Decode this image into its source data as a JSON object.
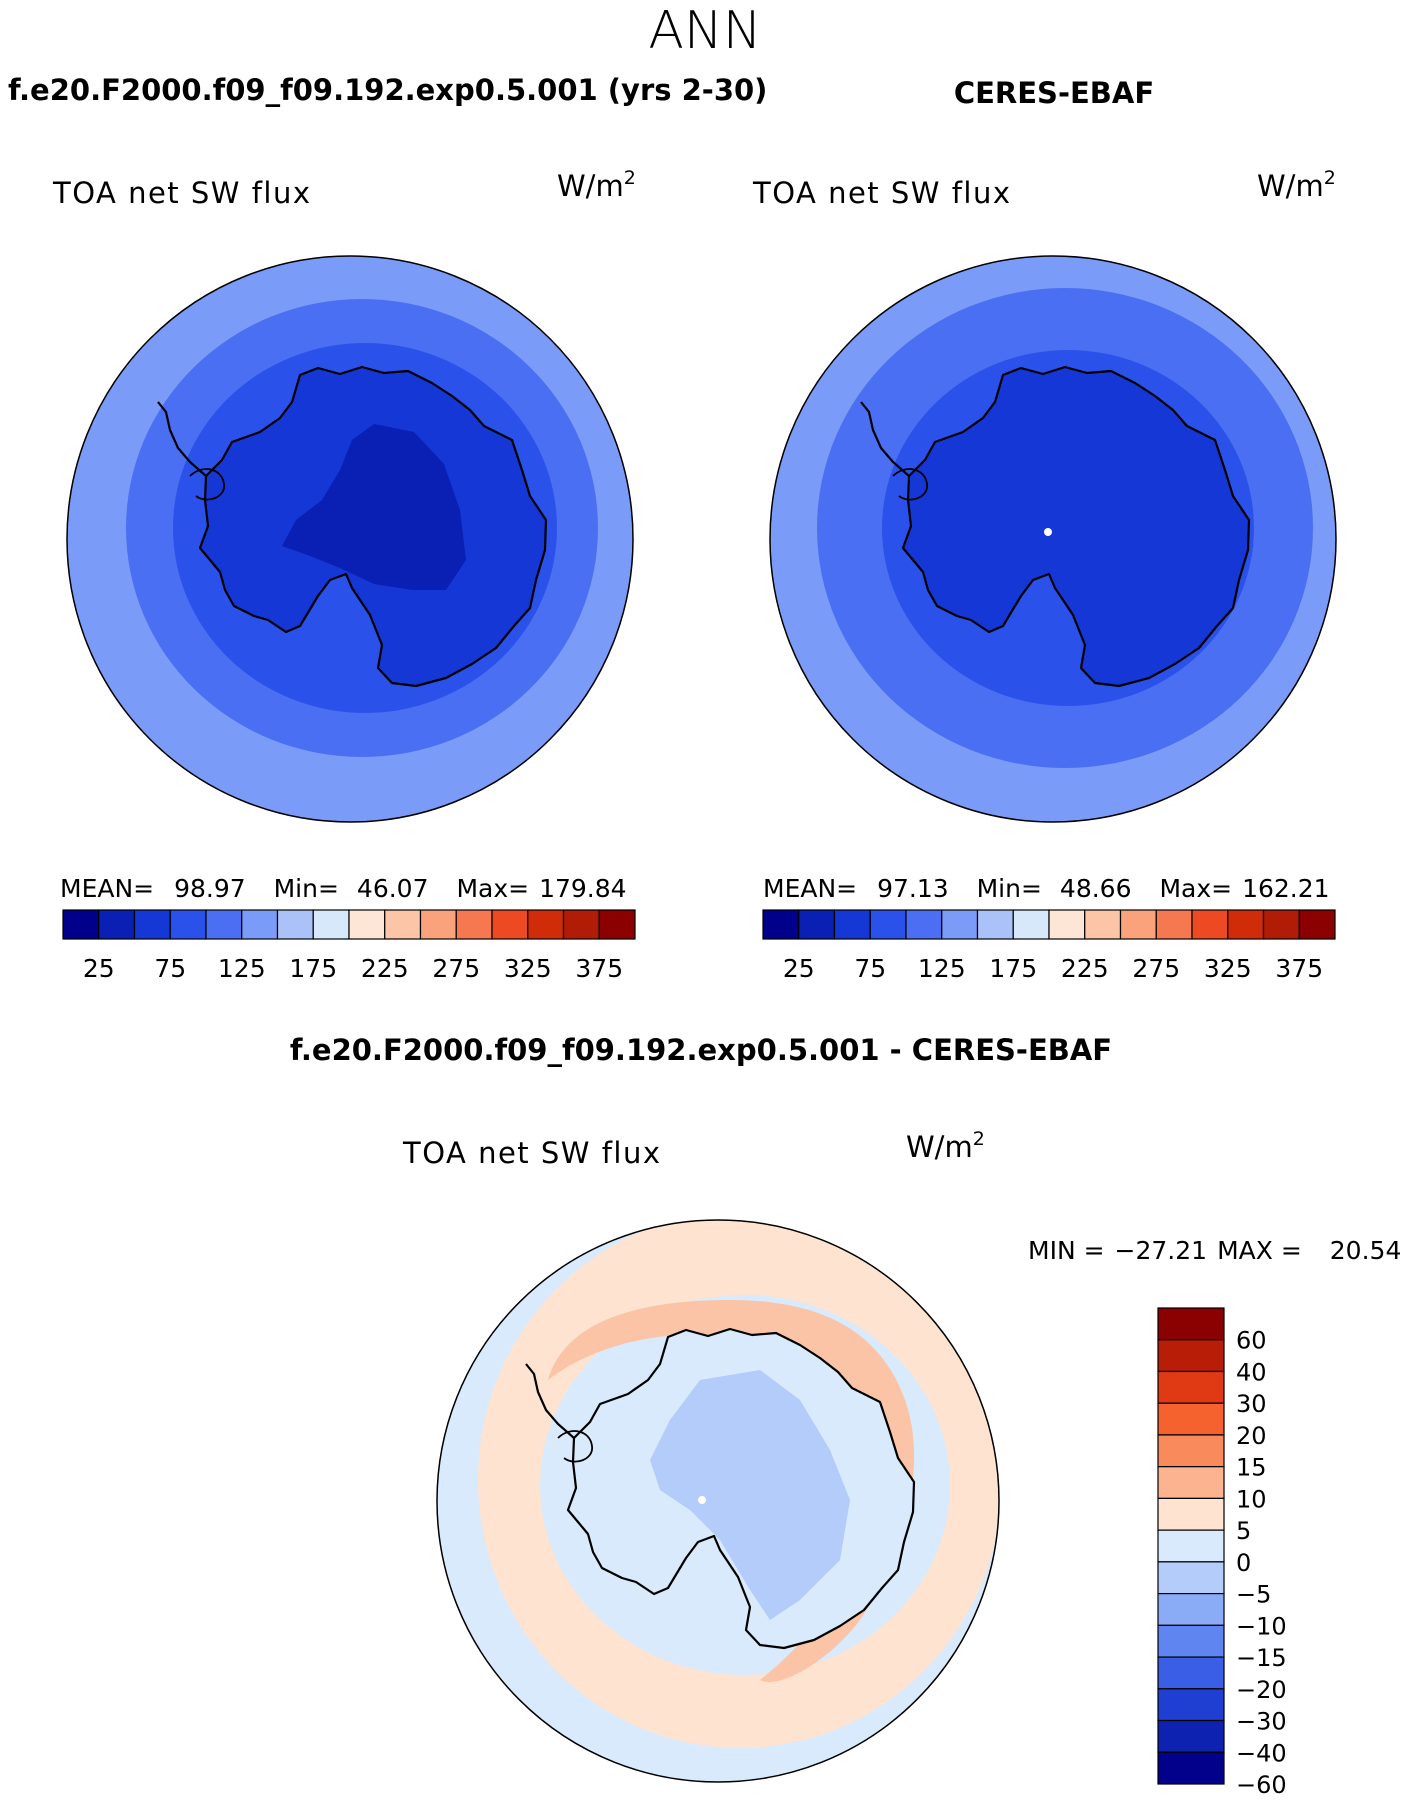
{
  "figure": {
    "title": "ANN",
    "panel_a_title": "f.e20.F2000.f09_f09.192.exp0.5.001 (yrs 2-30)",
    "panel_b_title": "CERES-EBAF",
    "panel_c_title": "f.e20.F2000.f09_f09.192.exp0.5.001 - CERES-EBAF"
  },
  "chart_data": [
    {
      "type": "heatmap",
      "projection": "south-polar-stereographic",
      "variable": "TOA net SW flux",
      "units": "W/m",
      "units_exponent": "2",
      "stats": {
        "mean_label": "MEAN=",
        "mean": "98.97",
        "min_label": "Min=",
        "min": "46.07",
        "max_label": "Max=",
        "max": "179.84"
      },
      "colorbar_ticks": [
        "25",
        "75",
        "125",
        "175",
        "225",
        "275",
        "325",
        "375"
      ],
      "colors": [
        "#00008b",
        "#0a1fb4",
        "#1537d5",
        "#2a52ea",
        "#4a6ff2",
        "#7a9bf7",
        "#abc2f8",
        "#d7e8fa",
        "#fde6d6",
        "#fcc5a8",
        "#f9a27c",
        "#f67850",
        "#ed4a23",
        "#d12c0a",
        "#b01c06",
        "#8b0000"
      ],
      "fields": {
        "ocean_far": "#7a9bf7",
        "ocean_mid": "#4a6ff2",
        "ocean_near": "#2a52ea",
        "land": "#1537d5",
        "interior": "#0a1fb4"
      }
    },
    {
      "type": "heatmap",
      "projection": "south-polar-stereographic",
      "variable": "TOA net SW flux",
      "units": "W/m",
      "units_exponent": "2",
      "stats": {
        "mean_label": "MEAN=",
        "mean": "97.13",
        "min_label": "Min=",
        "min": "48.66",
        "max_label": "Max=",
        "max": "162.21"
      },
      "colorbar_ticks": [
        "25",
        "75",
        "125",
        "175",
        "225",
        "275",
        "325",
        "375"
      ],
      "colors": [
        "#00008b",
        "#0a1fb4",
        "#1537d5",
        "#2a52ea",
        "#4a6ff2",
        "#7a9bf7",
        "#abc2f8",
        "#d7e8fa",
        "#fde6d6",
        "#fcc5a8",
        "#f9a27c",
        "#f67850",
        "#ed4a23",
        "#d12c0a",
        "#b01c06",
        "#8b0000"
      ],
      "fields": {
        "ocean_far": "#7a9bf7",
        "ocean_mid": "#4a6ff2",
        "ocean_near": "#2a52ea",
        "land": "#1537d5",
        "interior": "#1537d5"
      }
    },
    {
      "type": "heatmap",
      "projection": "south-polar-stereographic",
      "variable": "TOA net SW flux",
      "units": "W/m",
      "units_exponent": "2",
      "stats": {
        "min_label": "MIN =",
        "min": "−27.21",
        "max_label": "MAX =",
        "max": "20.54"
      },
      "colorbar_ticks": [
        "60",
        "40",
        "30",
        "20",
        "15",
        "10",
        "5",
        "0",
        "−5",
        "−10",
        "−15",
        "−20",
        "−30",
        "−40",
        "−60"
      ],
      "colors": [
        "#8b0000",
        "#b81d07",
        "#e03a14",
        "#f5622d",
        "#f88a5c",
        "#fbb48f",
        "#fde3d0",
        "#d8eafc",
        "#b3ccfa",
        "#8aacf6",
        "#5e85f0",
        "#3a5fe6",
        "#1f3fd2",
        "#0d22b0",
        "#01018b"
      ],
      "fields": {
        "ocean_far": "#d8eafc",
        "ocean_mid": "#fde3d0",
        "ocean_near": "#fbc4a6",
        "land": "#d8eafc",
        "interior": "#b3ccfa"
      }
    }
  ]
}
